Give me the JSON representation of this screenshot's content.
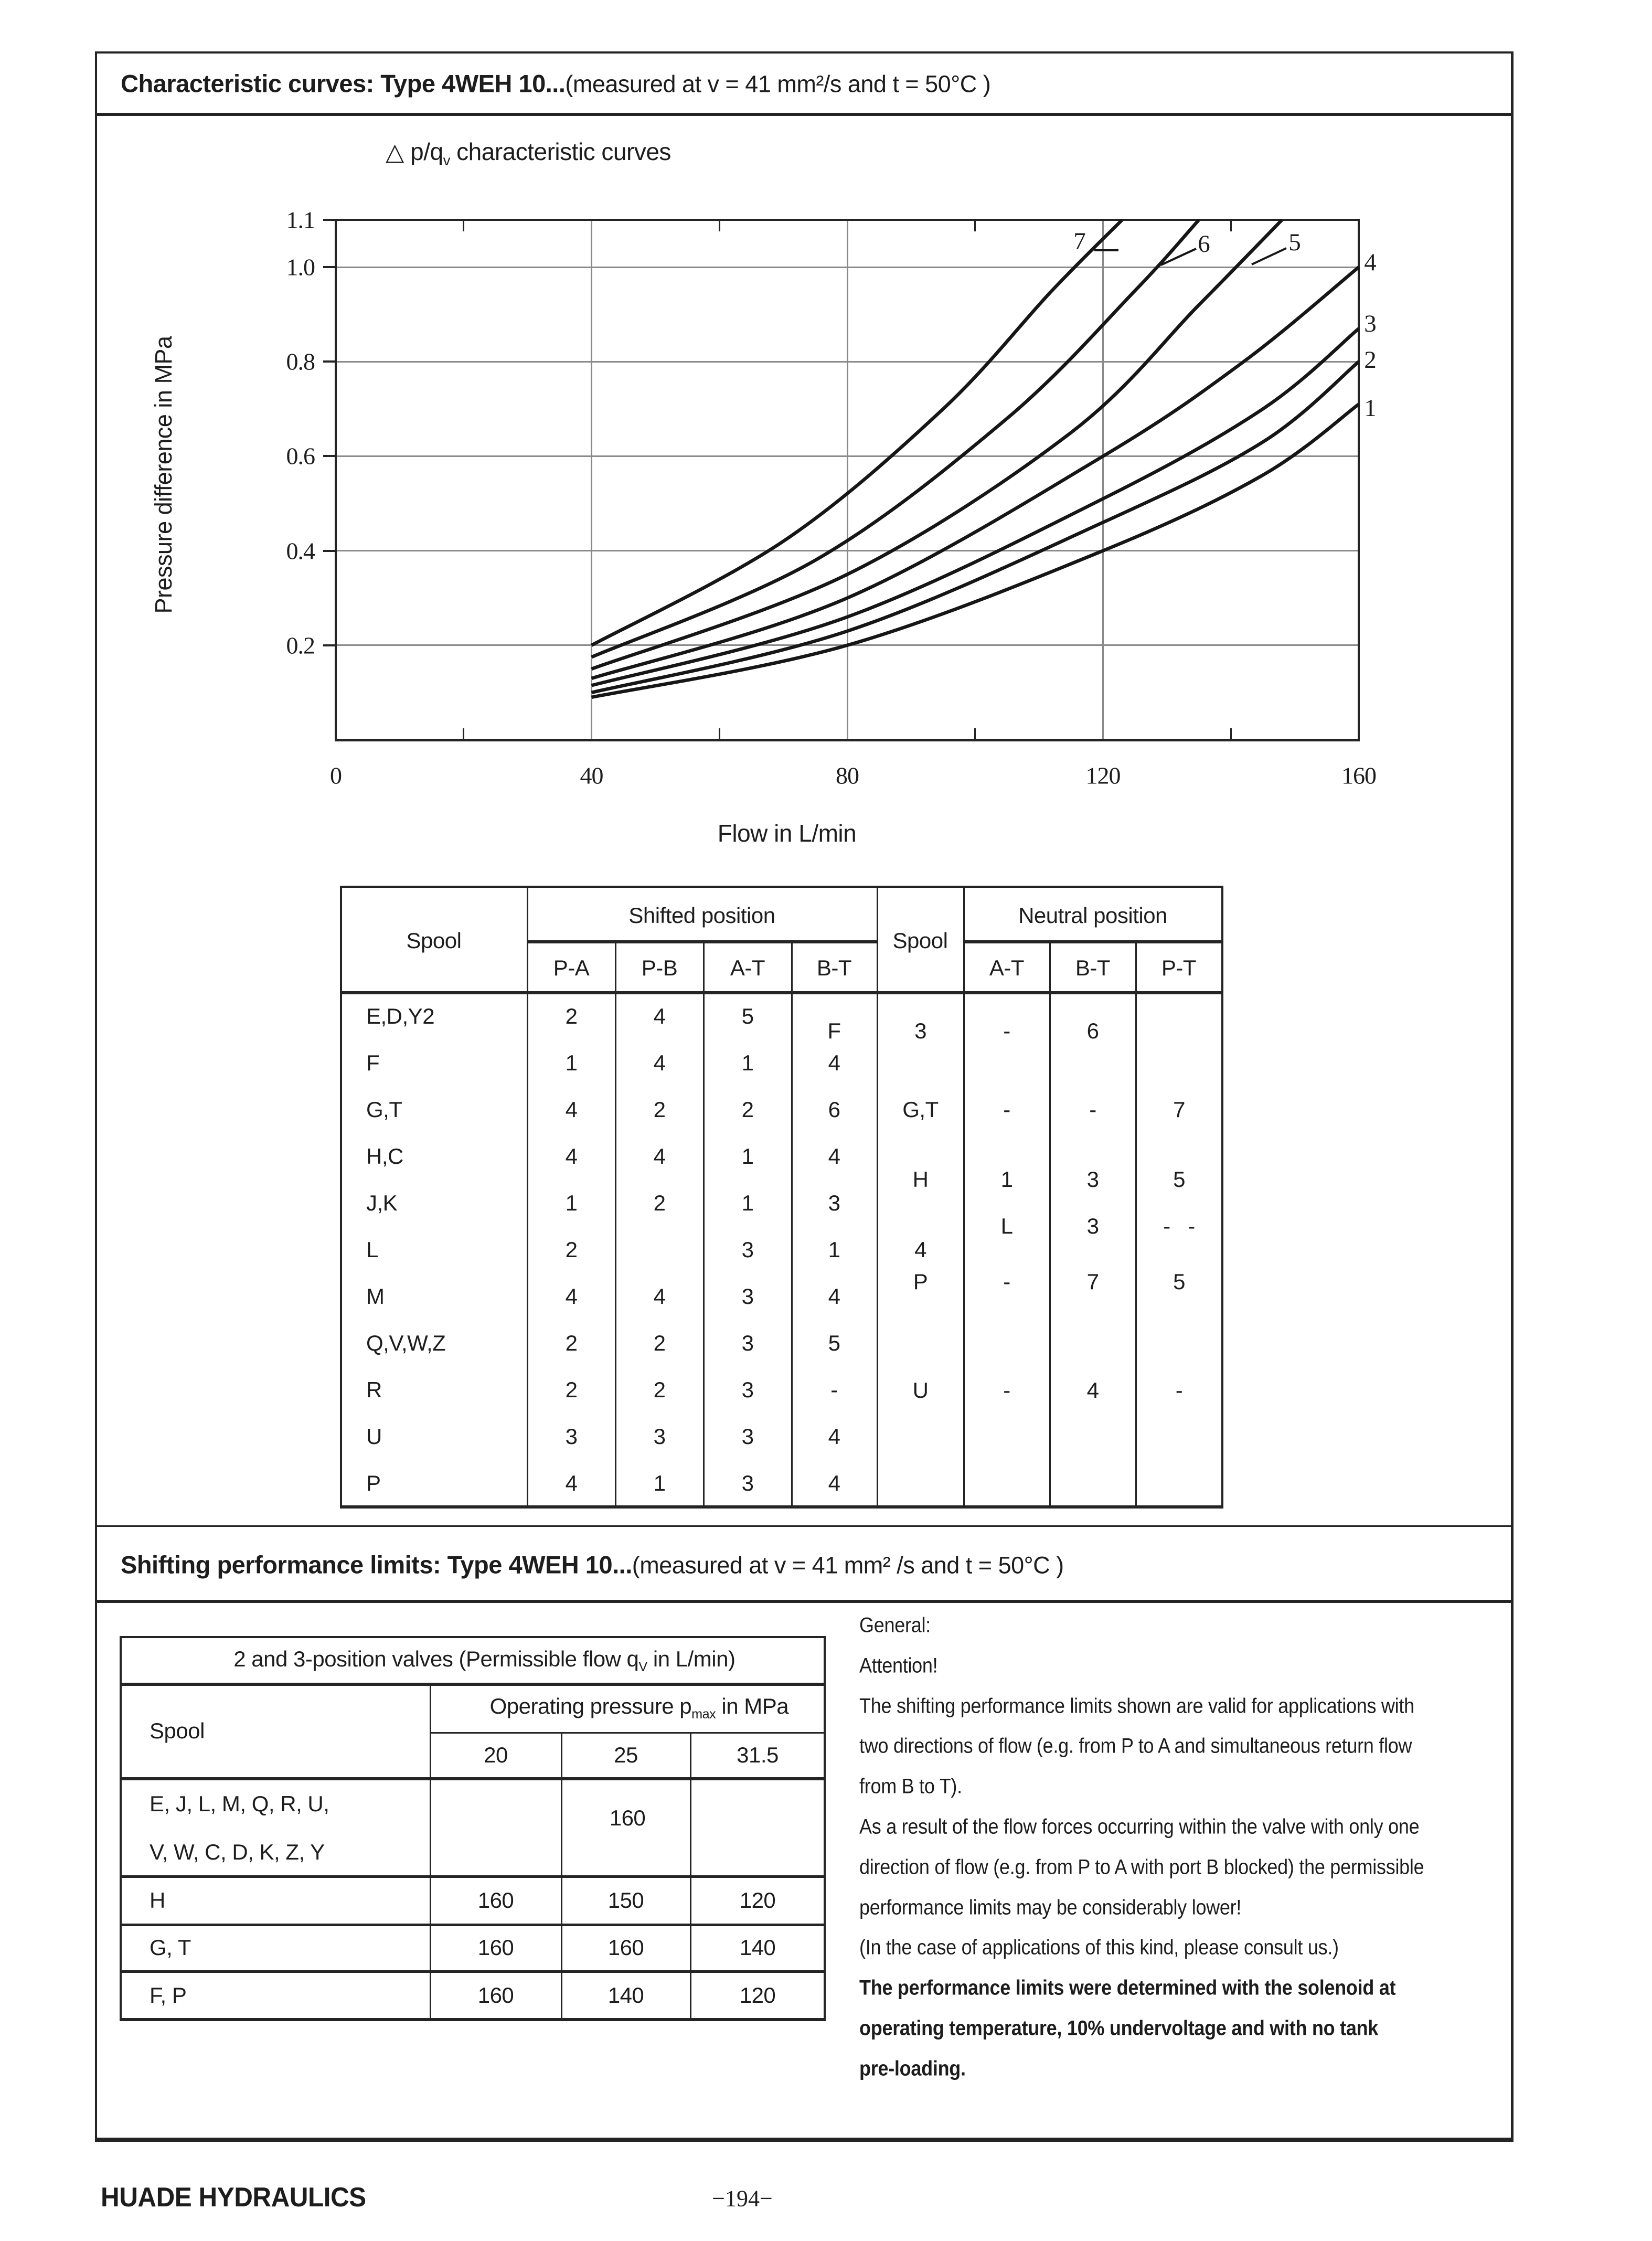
{
  "titles": {
    "section1_bold": "Characteristic curves: Type 4WEH 10...",
    "section1_normal": "(measured at v = 41 mm²/s and t = 50°C )",
    "section2_bold": "Shifting performance limits: Type 4WEH 10...",
    "section2_normal": "(measured at v = 41 mm² /s and t = 50°C )"
  },
  "chart_data": {
    "type": "line",
    "title_parts": {
      "pre": "△ p/q",
      "sub": "v",
      "post": " characteristic curves"
    },
    "xlabel": "Flow in L/min",
    "ylabel": "Pressure difference in MPa",
    "xlim": [
      0,
      160
    ],
    "ylim": [
      0,
      1.1
    ],
    "x_tick_labels": [
      "0",
      "40",
      "80",
      "120",
      "160"
    ],
    "x_tick_values": [
      0,
      40,
      80,
      120,
      160
    ],
    "y_tick_labels": [
      "1.1",
      "1.0",
      "0.8",
      "0.6",
      "0.4",
      "0.2"
    ],
    "y_tick_values": [
      1.1,
      1.0,
      0.8,
      0.6,
      0.4,
      0.2
    ],
    "origin_label": "0",
    "grid": true,
    "legend_position": "labels-on-curves",
    "series": [
      {
        "name": "1",
        "points": [
          [
            40,
            0.09
          ],
          [
            80,
            0.2
          ],
          [
            120,
            0.4
          ],
          [
            145,
            0.56
          ],
          [
            160,
            0.71
          ]
        ]
      },
      {
        "name": "2",
        "points": [
          [
            40,
            0.1
          ],
          [
            80,
            0.23
          ],
          [
            120,
            0.46
          ],
          [
            145,
            0.63
          ],
          [
            160,
            0.8
          ]
        ]
      },
      {
        "name": "3",
        "points": [
          [
            40,
            0.115
          ],
          [
            80,
            0.26
          ],
          [
            120,
            0.51
          ],
          [
            145,
            0.7
          ],
          [
            160,
            0.87
          ]
        ]
      },
      {
        "name": "4",
        "points": [
          [
            40,
            0.13
          ],
          [
            80,
            0.3
          ],
          [
            120,
            0.6
          ],
          [
            142,
            0.8
          ],
          [
            160,
            1.0
          ]
        ]
      },
      {
        "name": "5",
        "points": [
          [
            40,
            0.15
          ],
          [
            80,
            0.35
          ],
          [
            115,
            0.65
          ],
          [
            135,
            0.92
          ],
          [
            148,
            1.1
          ]
        ]
      },
      {
        "name": "6",
        "points": [
          [
            40,
            0.175
          ],
          [
            75,
            0.38
          ],
          [
            105,
            0.68
          ],
          [
            125,
            0.95
          ],
          [
            135,
            1.1
          ]
        ]
      },
      {
        "name": "7",
        "points": [
          [
            40,
            0.2
          ],
          [
            70,
            0.42
          ],
          [
            95,
            0.7
          ],
          [
            112,
            0.95
          ],
          [
            123,
            1.1
          ]
        ]
      }
    ]
  },
  "upper_table": {
    "spool_header": "Spool",
    "shifted_header": "Shifted position",
    "shifted_cols": [
      "P-A",
      "P-B",
      "A-T",
      "B-T"
    ],
    "spool2_header": "Spool",
    "neutral_header": "Neutral position",
    "neutral_cols": [
      "A-T",
      "B-T",
      "P-T"
    ],
    "left_rows": [
      {
        "spool": "E,D,Y2",
        "values": [
          "2",
          "4",
          "5",
          "F"
        ]
      },
      {
        "spool": "F",
        "values": [
          "1",
          "4",
          "1",
          "4"
        ]
      },
      {
        "spool": "G,T",
        "values": [
          "4",
          "2",
          "2",
          "6"
        ]
      },
      {
        "spool": "H,C",
        "values": [
          "4",
          "4",
          "1",
          "4"
        ]
      },
      {
        "spool": "J,K",
        "values": [
          "1",
          "2",
          "1",
          "3"
        ]
      },
      {
        "spool": "L",
        "values": [
          "2",
          "",
          "3",
          "1"
        ]
      },
      {
        "spool": "M",
        "values": [
          "4",
          "4",
          "3",
          "4"
        ]
      },
      {
        "spool": "Q,V,W,Z",
        "values": [
          "2",
          "2",
          "3",
          "5"
        ]
      },
      {
        "spool": "R",
        "values": [
          "2",
          "2",
          "3",
          "-"
        ]
      },
      {
        "spool": "U",
        "values": [
          "3",
          "3",
          "3",
          "4"
        ]
      },
      {
        "spool": "P",
        "values": [
          "4",
          "1",
          "3",
          "4"
        ]
      }
    ],
    "right_rows": [
      {
        "spool": "3",
        "at": "-",
        "bt": "6",
        "pt": ""
      },
      {
        "spool": "G,T",
        "at": "-",
        "bt": "-",
        "pt": "7"
      },
      {
        "spool": "H",
        "at": "1",
        "bt": "3",
        "pt": "5"
      },
      {
        "spool": "",
        "at": "L",
        "bt": "3",
        "pt": "-   -"
      },
      {
        "spool": "4",
        "at": "",
        "bt": "",
        "pt": ""
      },
      {
        "spool": "P",
        "at": "-",
        "bt": "7",
        "pt": "5"
      },
      {
        "spool": "U",
        "at": "-",
        "bt": "4",
        "pt": "-"
      }
    ]
  },
  "lower_table": {
    "title_parts": {
      "pre": "2 and 3-position valves (Permissible flow q",
      "sub": "V",
      "post": " in L/min)"
    },
    "spool_header": "Spool",
    "pressure_parts": {
      "pre": "Operating pressure p",
      "sub": "max",
      "post": " in MPa"
    },
    "pressure_cols": [
      "20",
      "25",
      "31.5"
    ],
    "rows": [
      {
        "spool_lines": [
          "E, J, L, M, Q, R, U,",
          "V, W, C, D, K, Z, Y"
        ],
        "values": [
          "160"
        ],
        "span": true
      },
      {
        "spool_lines": [
          "H"
        ],
        "values": [
          "160",
          "150",
          "120"
        ]
      },
      {
        "spool_lines": [
          "G, T"
        ],
        "values": [
          "160",
          "160",
          "140"
        ]
      },
      {
        "spool_lines": [
          "F, P"
        ],
        "values": [
          "160",
          "140",
          "120"
        ]
      }
    ]
  },
  "notes": {
    "lines": [
      {
        "text": "General:",
        "bold": false
      },
      {
        "text": "Attention!",
        "bold": false
      },
      {
        "text": "The shifting performance limits shown are valid for applications with",
        "bold": false
      },
      {
        "text": "two directions of flow (e.g. from P to A and simultaneous return flow",
        "bold": false
      },
      {
        "text": "from B to T).",
        "bold": false
      },
      {
        "text": "As a result of the flow forces occurring within the valve with only one",
        "bold": false
      },
      {
        "text": "direction of flow (e.g. from P to A with port B blocked) the permissible",
        "bold": false
      },
      {
        "text": "performance limits may be considerably lower!",
        "bold": false
      },
      {
        "text": "(In the case of applications of this kind, please consult us.)",
        "bold": false
      },
      {
        "text": "The performance limits were determined with the solenoid at",
        "bold": true
      },
      {
        "text": "operating temperature, 10% undervoltage and with no tank",
        "bold": true
      },
      {
        "text": "pre-loading.",
        "bold": true
      }
    ]
  },
  "footer": {
    "brand": "HUADE HYDRAULICS",
    "page_number": "−194−"
  }
}
